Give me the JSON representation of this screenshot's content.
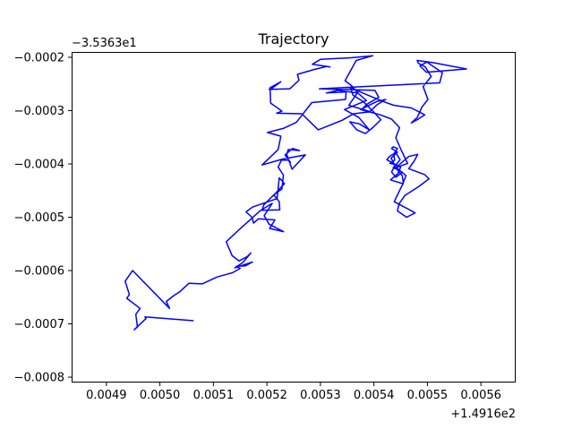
{
  "chart_data": {
    "type": "line",
    "title": "Trajectory",
    "xlabel": "",
    "ylabel": "",
    "x_offset_label": "+1.4916e2",
    "y_offset_label": "−3.5363e1",
    "xlim": [
      0.004835,
      0.005665
    ],
    "ylim": [
      -0.00081,
      -0.00019
    ],
    "x_ticks": [
      0.0049,
      0.005,
      0.0051,
      0.0052,
      0.0053,
      0.0054,
      0.0055,
      0.0056
    ],
    "x_tick_labels": [
      "0.0049",
      "0.0050",
      "0.0051",
      "0.0052",
      "0.0053",
      "0.0054",
      "0.0055",
      "0.0056"
    ],
    "y_ticks": [
      -0.0002,
      -0.0003,
      -0.0004,
      -0.0005,
      -0.0006,
      -0.0007,
      -0.0008
    ],
    "y_tick_labels": [
      "−0.0002",
      "−0.0003",
      "−0.0004",
      "−0.0005",
      "−0.0006",
      "−0.0007",
      "−0.0008"
    ],
    "grid": false,
    "series": [
      {
        "color": "#0000ff",
        "x": [
          0.005063,
          0.004972,
          0.004974,
          0.004952,
          0.004958,
          0.004955,
          0.004963,
          0.004938,
          0.004943,
          0.004935,
          0.004949,
          0.005018,
          0.005012,
          0.005026,
          0.005037,
          0.005054,
          0.005079,
          0.005107,
          0.005136,
          0.00515,
          0.005143,
          0.00516,
          0.005173,
          0.00514,
          0.005155,
          0.00517,
          0.005163,
          0.005148,
          0.005135,
          0.005124,
          0.005145,
          0.005187,
          0.00521,
          0.005195,
          0.005204,
          0.005231,
          0.005205,
          0.005215,
          0.005184,
          0.005175,
          0.005172,
          0.005161,
          0.005173,
          0.005219,
          0.005223,
          0.005233,
          0.005217,
          0.005194,
          0.005191,
          0.005224,
          0.005223,
          0.005213,
          0.005221,
          0.005228,
          0.005231,
          0.005221,
          0.005227,
          0.005241,
          0.005244,
          0.005234,
          0.005248,
          0.005261,
          0.00524,
          0.005237,
          0.005247,
          0.005272,
          0.005229,
          0.005191,
          0.005221,
          0.005226,
          0.005201,
          0.005232,
          0.005255,
          0.005284,
          0.005347,
          0.005348,
          0.005311,
          0.005333,
          0.005369,
          0.005353,
          0.005393,
          0.005362,
          0.005341,
          0.005296,
          0.005265,
          0.005218,
          0.005228,
          0.005217,
          0.005207,
          0.005206,
          0.005226,
          0.005207,
          0.005204,
          0.005243,
          0.00526,
          0.005257,
          0.005288,
          0.005312,
          0.005318,
          0.005285,
          0.0053,
          0.005357,
          0.005398,
          0.005367,
          0.005346,
          0.005358,
          0.005371,
          0.005386,
          0.005357,
          0.005345,
          0.005372,
          0.005391,
          0.005373,
          0.005355,
          0.005368,
          0.005384,
          0.005398,
          0.005413,
          0.0054,
          0.00538,
          0.005361,
          0.005356,
          0.005368,
          0.005391,
          0.00542,
          0.005437,
          0.00547,
          0.005495,
          0.005481,
          0.00547,
          0.005481,
          0.00549,
          0.005501,
          0.005492,
          0.005507,
          0.005496,
          0.005483,
          0.005481,
          0.00551,
          0.005573,
          0.005498,
          0.005486,
          0.005499,
          0.005528,
          0.005523,
          0.005298,
          0.005402,
          0.005409,
          0.005387,
          0.005378,
          0.005392,
          0.005406,
          0.005422,
          0.005405,
          0.005375,
          0.005412,
          0.005433,
          0.005448,
          0.005441,
          0.005451,
          0.005463,
          0.005441,
          0.005465,
          0.005482,
          0.005475,
          0.005465,
          0.005495,
          0.005503,
          0.005483,
          0.005458,
          0.005447,
          0.005444,
          0.005461,
          0.005477,
          0.005461,
          0.005438,
          0.005447,
          0.005455,
          0.005453,
          0.005443,
          0.005436,
          0.005441,
          0.00545,
          0.005445,
          0.005431,
          0.005454,
          0.00546,
          0.005441,
          0.005432,
          0.005444,
          0.005433,
          0.005436,
          0.005444,
          0.005437,
          0.005439,
          0.00543,
          0.00544,
          0.005424,
          0.00543,
          0.005441,
          0.005449,
          0.005438,
          0.005433,
          0.005441,
          0.005454
        ],
        "y": [
          -0.000694,
          -0.000687,
          -0.00069,
          -0.000711,
          -0.000706,
          -0.000682,
          -0.000671,
          -0.000652,
          -0.000645,
          -0.00062,
          -0.0006,
          -0.000671,
          -0.000658,
          -0.000647,
          -0.00064,
          -0.000624,
          -0.000625,
          -0.000612,
          -0.000604,
          -0.000596,
          -0.000592,
          -0.000591,
          -0.000584,
          -0.000595,
          -0.000585,
          -0.000567,
          -0.000574,
          -0.000582,
          -0.000572,
          -0.000546,
          -0.000526,
          -0.000488,
          -0.000474,
          -0.000497,
          -0.000513,
          -0.000527,
          -0.000521,
          -0.000505,
          -0.000503,
          -0.000511,
          -0.0005,
          -0.00049,
          -0.000481,
          -0.000465,
          -0.000426,
          -0.000437,
          -0.000454,
          -0.000477,
          -0.000487,
          -0.000486,
          -0.000471,
          -0.000458,
          -0.000452,
          -0.000447,
          -0.000421,
          -0.000406,
          -0.000393,
          -0.000393,
          -0.000397,
          -0.000383,
          -0.000371,
          -0.000375,
          -0.000373,
          -0.000382,
          -0.00041,
          -0.000383,
          -0.000391,
          -0.000402,
          -0.000373,
          -0.000348,
          -0.000341,
          -0.000333,
          -0.000322,
          -0.000285,
          -0.000279,
          -0.000265,
          -0.000267,
          -0.000262,
          -0.000267,
          -0.00029,
          -0.000302,
          -0.000306,
          -0.000318,
          -0.000336,
          -0.000306,
          -0.000305,
          -0.000301,
          -0.000293,
          -0.000286,
          -0.000257,
          -0.000246,
          -0.00026,
          -0.00026,
          -0.000259,
          -0.000243,
          -0.000232,
          -0.000223,
          -0.000217,
          -0.000218,
          -0.000213,
          -0.000204,
          -0.000201,
          -0.000197,
          -0.000206,
          -0.000244,
          -0.000253,
          -0.000268,
          -0.000281,
          -0.000293,
          -0.000298,
          -0.000313,
          -0.000336,
          -0.000325,
          -0.000321,
          -0.000336,
          -0.000343,
          -0.000332,
          -0.000317,
          -0.000303,
          -0.000283,
          -0.000271,
          -0.000256,
          -0.000262,
          -0.000272,
          -0.000284,
          -0.00029,
          -0.000295,
          -0.000308,
          -0.000317,
          -0.000323,
          -0.000313,
          -0.000293,
          -0.000279,
          -0.000255,
          -0.000236,
          -0.000218,
          -0.000211,
          -0.000206,
          -0.00021,
          -0.000222,
          -0.000228,
          -0.000216,
          -0.000209,
          -0.000229,
          -0.000248,
          -0.000259,
          -0.000262,
          -0.000275,
          -0.000288,
          -0.000297,
          -0.000302,
          -0.000289,
          -0.000279,
          -0.000283,
          -0.000298,
          -0.000308,
          -0.000316,
          -0.000332,
          -0.000351,
          -0.000374,
          -0.000399,
          -0.000407,
          -0.000386,
          -0.000382,
          -0.000395,
          -0.000409,
          -0.00042,
          -0.000428,
          -0.000443,
          -0.000459,
          -0.000475,
          -0.000488,
          -0.0005,
          -0.000492,
          -0.000483,
          -0.000471,
          -0.000452,
          -0.000436,
          -0.000422,
          -0.00041,
          -0.000407,
          -0.000401,
          -0.000406,
          -0.000418,
          -0.00043,
          -0.000437,
          -0.000422,
          -0.000406,
          -0.000389,
          -0.000378,
          -0.000371,
          -0.000368,
          -0.000371,
          -0.000382,
          -0.000393,
          -0.000399,
          -0.000401,
          -0.000392,
          -0.000385,
          -0.000379,
          -0.000392,
          -0.000406,
          -0.000415,
          -0.000425,
          -0.000415
        ]
      }
    ]
  }
}
